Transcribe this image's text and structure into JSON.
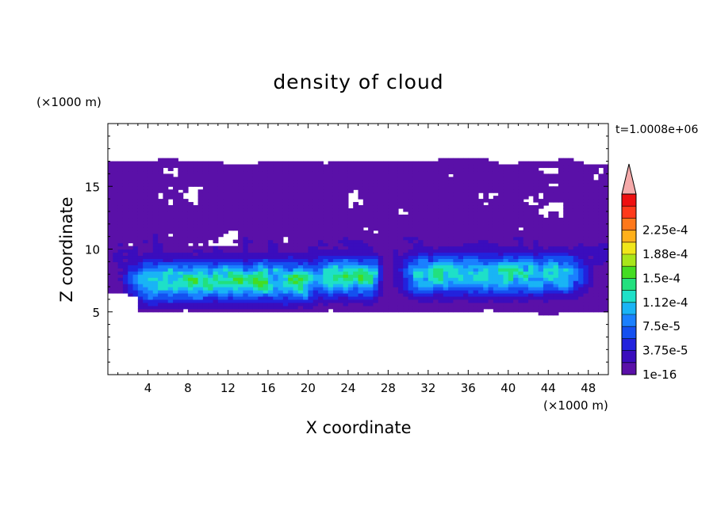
{
  "chart_data": {
    "type": "heatmap",
    "title": "density of cloud",
    "xlabel": "X coordinate",
    "ylabel": "Z coordinate",
    "x_unit": "(×1000 m)",
    "y_unit": "(×1000 m)",
    "time_label": "t=1.0008e+06",
    "xlim": [
      0,
      50
    ],
    "ylim": [
      0,
      20
    ],
    "x_ticks": [
      {
        "v": 4,
        "label": "4"
      },
      {
        "v": 8,
        "label": "8"
      },
      {
        "v": 12,
        "label": "12"
      },
      {
        "v": 16,
        "label": "16"
      },
      {
        "v": 20,
        "label": "20"
      },
      {
        "v": 24,
        "label": "24"
      },
      {
        "v": 28,
        "label": "28"
      },
      {
        "v": 32,
        "label": "32"
      },
      {
        "v": 36,
        "label": "36"
      },
      {
        "v": 40,
        "label": "40"
      },
      {
        "v": 44,
        "label": "44"
      },
      {
        "v": 48,
        "label": "48"
      }
    ],
    "y_ticks": [
      {
        "v": 5,
        "label": "5"
      },
      {
        "v": 10,
        "label": "10"
      },
      {
        "v": 15,
        "label": "15"
      }
    ],
    "colorbar": {
      "levels": [
        1e-16,
        1.875e-05,
        3.75e-05,
        5.625e-05,
        7.5e-05,
        9.375e-05,
        0.0001125,
        0.00013125,
        0.00015,
        0.00016875,
        0.0001875,
        0.00020625,
        0.000225,
        0.00024375
      ],
      "colors": [
        "#5a10a8",
        "#3a0dbd",
        "#2222dd",
        "#1450f0",
        "#1a80ff",
        "#19b4f5",
        "#1ee0c8",
        "#22e07e",
        "#44dd22",
        "#a8e61a",
        "#f0e61a",
        "#ffb01a",
        "#ff781a",
        "#ff3a1a",
        "#ee1010"
      ],
      "extend_color": "#f5aaaa",
      "tick_labels": [
        {
          "level_index": 0,
          "label": "1e-16"
        },
        {
          "level_index": 2,
          "label": "3.75e-5"
        },
        {
          "level_index": 4,
          "label": "7.5e-5"
        },
        {
          "level_index": 6,
          "label": "1.12e-4"
        },
        {
          "level_index": 8,
          "label": "1.5e-4"
        },
        {
          "level_index": 10,
          "label": "1.88e-4"
        },
        {
          "level_index": 12,
          "label": "2.25e-4"
        }
      ]
    },
    "field": {
      "cloud_base_z": 5.0,
      "cloud_top_z": 17.0,
      "dense_bands": [
        {
          "x_range": [
            3,
            21
          ],
          "z_center": 7.5,
          "peak": 0.00014
        },
        {
          "x_range": [
            21,
            27
          ],
          "z_center": 7.8,
          "peak": 0.00013
        },
        {
          "x_range": [
            30,
            47
          ],
          "z_center": 8.0,
          "peak": 0.000125
        }
      ]
    }
  }
}
